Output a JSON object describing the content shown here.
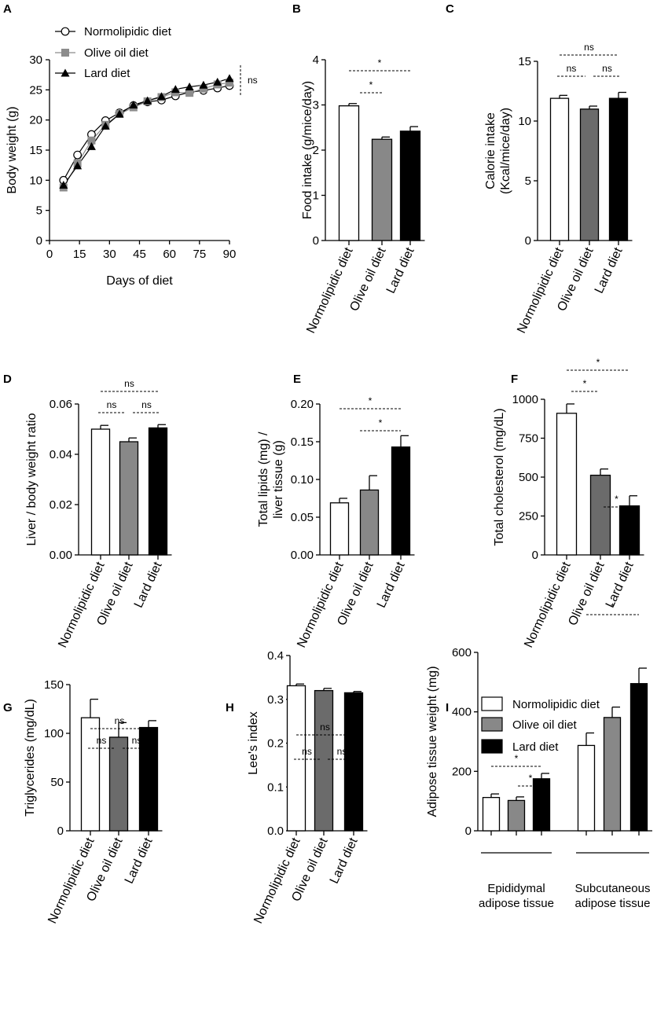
{
  "chart_data": [
    {
      "panel": "A",
      "type": "line",
      "xlabel": "Days of diet",
      "ylabel": "Body weight (g)",
      "xlim": [
        0,
        90
      ],
      "ylim": [
        0,
        30
      ],
      "xticks": [
        "0",
        "15",
        "30",
        "45",
        "60",
        "75",
        "90"
      ],
      "yticks": [
        "0",
        "5",
        "10",
        "15",
        "20",
        "25",
        "30"
      ],
      "x": [
        7,
        14,
        21,
        28,
        35,
        42,
        49,
        56,
        63,
        70,
        77,
        84,
        90
      ],
      "series": [
        {
          "name": "Normolipidic diet",
          "marker": "circle",
          "values": [
            10,
            14.2,
            17.6,
            19.9,
            21.2,
            22.4,
            23.0,
            23.3,
            24.0,
            24.6,
            24.9,
            25.3,
            25.7
          ]
        },
        {
          "name": "Olive oil diet",
          "marker": "square",
          "values": [
            8.8,
            12.8,
            16.6,
            19.2,
            21.0,
            22.1,
            23.1,
            23.8,
            24.6,
            24.5,
            25.2,
            25.9,
            26.2
          ]
        },
        {
          "name": "Lard diet",
          "marker": "triangle",
          "values": [
            9.2,
            12.4,
            15.6,
            19.0,
            21.0,
            22.5,
            23.2,
            23.9,
            25.1,
            25.5,
            25.8,
            26.3,
            26.9
          ]
        }
      ],
      "annotation": "ns"
    },
    {
      "panel": "B",
      "type": "bar",
      "ylabel": "Food intake (g/mice/day)",
      "ylim": [
        0,
        4
      ],
      "yticks": [
        "0",
        "1",
        "2",
        "3",
        "4"
      ],
      "categories": [
        "Normolipidic diet",
        "Olive oil diet",
        "Lard diet"
      ],
      "values": [
        2.98,
        2.24,
        2.42
      ],
      "errors": [
        0.05,
        0.05,
        0.1
      ],
      "fills": [
        "#ffffff",
        "#888888",
        "#000000"
      ],
      "annotations": [
        {
          "from": 1,
          "to": 2,
          "label": "*",
          "level": 2
        },
        {
          "from": 1,
          "to": 3,
          "label": "*",
          "level": 1
        }
      ]
    },
    {
      "panel": "C",
      "type": "bar",
      "ylabel": "Calorie intake\n(Kcal/mice/day)",
      "ylim": [
        0,
        15
      ],
      "yticks": [
        "0",
        "5",
        "10",
        "15"
      ],
      "categories": [
        "Normolipidic diet",
        "Olive oil diet",
        "Lard diet"
      ],
      "values": [
        11.9,
        11.0,
        11.9
      ],
      "errors": [
        0.25,
        0.25,
        0.5
      ],
      "fills": [
        "#ffffff",
        "#6b6b6b",
        "#000000"
      ],
      "annotations": [
        {
          "from": 1,
          "to": 3,
          "label": "ns",
          "level": 1
        },
        {
          "from": 1,
          "to": 2,
          "label": "ns",
          "level": 2
        },
        {
          "from": 2,
          "to": 3,
          "label": "ns",
          "level": 2
        }
      ]
    },
    {
      "panel": "D",
      "type": "bar",
      "ylabel": "Liver / body weight ratio",
      "ylim": [
        0,
        0.06
      ],
      "yticks": [
        "0.00",
        "0.02",
        "0.04",
        "0.06"
      ],
      "categories": [
        "Normolipidic diet",
        "Olive oil diet",
        "Lard diet"
      ],
      "values": [
        0.05,
        0.045,
        0.0505
      ],
      "errors": [
        0.0015,
        0.0015,
        0.0013
      ],
      "fills": [
        "#ffffff",
        "#888888",
        "#000000"
      ],
      "annotations": [
        {
          "from": 1,
          "to": 3,
          "label": "ns",
          "level": 1
        },
        {
          "from": 1,
          "to": 2,
          "label": "ns",
          "level": 2
        },
        {
          "from": 2,
          "to": 3,
          "label": "ns",
          "level": 2
        }
      ]
    },
    {
      "panel": "E",
      "type": "bar",
      "ylabel": "Total lipids (mg) /\nliver tissue (g)",
      "ylim": [
        0,
        0.2
      ],
      "yticks": [
        "0.00",
        "0.05",
        "0.10",
        "0.15",
        "0.20"
      ],
      "categories": [
        "Normolipidic diet",
        "Olive oil diet",
        "Lard diet"
      ],
      "values": [
        0.069,
        0.086,
        0.143
      ],
      "errors": [
        0.006,
        0.019,
        0.015
      ],
      "fills": [
        "#ffffff",
        "#888888",
        "#000000"
      ],
      "annotations": [
        {
          "from": 1,
          "to": 3,
          "label": "*",
          "level": 1
        },
        {
          "from": 2,
          "to": 3,
          "label": "*",
          "level": 2
        }
      ]
    },
    {
      "panel": "F",
      "type": "bar",
      "ylabel": "Total cholesterol (mg/dL)",
      "ylim": [
        0,
        1000
      ],
      "yticks": [
        "0",
        "250",
        "500",
        "750",
        "1000"
      ],
      "categories": [
        "Normolipidic diet",
        "Olive oil diet",
        "Lard diet"
      ],
      "values": [
        910,
        512,
        315
      ],
      "errors": [
        60,
        40,
        65
      ],
      "fills": [
        "#ffffff",
        "#6b6b6b",
        "#000000"
      ],
      "annotations": [
        {
          "from": 1,
          "to": 3,
          "label": "*",
          "level": 1
        },
        {
          "from": 1,
          "to": 2,
          "label": "*",
          "level": 2
        },
        {
          "from": 2,
          "to": 3,
          "label": "*",
          "level": 4
        }
      ]
    },
    {
      "panel": "G",
      "type": "bar",
      "ylabel": "Triglycerides (mg/dL)",
      "ylim": [
        0,
        150
      ],
      "yticks": [
        "0",
        "50",
        "100",
        "150"
      ],
      "categories": [
        "Normolipidic diet",
        "Olive oil diet",
        "Lard diet"
      ],
      "values": [
        116,
        96,
        106
      ],
      "errors": [
        19,
        15,
        7
      ],
      "fills": [
        "#ffffff",
        "#6b6b6b",
        "#000000"
      ],
      "annotations": [
        {
          "from": 1,
          "to": 3,
          "label": "ns",
          "level": 1
        },
        {
          "from": 1,
          "to": 2,
          "label": "ns",
          "level": 2
        },
        {
          "from": 2,
          "to": 3,
          "label": "ns",
          "level": 2
        }
      ]
    },
    {
      "panel": "H",
      "type": "bar",
      "ylabel": "Lee's index",
      "ylim": [
        0,
        0.4
      ],
      "yticks": [
        "0.0",
        "0.1",
        "0.2",
        "0.3",
        "0.4"
      ],
      "categories": [
        "Normolipidic diet",
        "Olive oil diet",
        "Lard diet"
      ],
      "values": [
        0.331,
        0.32,
        0.315
      ],
      "errors": [
        0.004,
        0.005,
        0.003
      ],
      "fills": [
        "#ffffff",
        "#6b6b6b",
        "#000000"
      ],
      "annotations": [
        {
          "from": 1,
          "to": 3,
          "label": "ns",
          "level": 1
        },
        {
          "from": 1,
          "to": 2,
          "label": "ns",
          "level": 2
        },
        {
          "from": 2,
          "to": 3,
          "label": "ns",
          "level": 2
        }
      ]
    },
    {
      "panel": "I",
      "type": "bar",
      "ylabel": "Adipose tissue weight (mg)",
      "ylim": [
        0,
        600
      ],
      "yticks": [
        "0",
        "200",
        "400",
        "600"
      ],
      "legend": [
        "Normolipidic diet",
        "Olive oil diet",
        "Lard diet"
      ],
      "legend_fills": [
        "#ffffff",
        "#888888",
        "#000000"
      ],
      "groups": [
        {
          "label": "Epididymal\nadipose tissue",
          "values": [
            112,
            102,
            175
          ],
          "errors": [
            12,
            12,
            18
          ]
        },
        {
          "label": "Subcutaneous\nadipose tissue",
          "values": [
            287,
            381,
            495
          ],
          "errors": [
            42,
            35,
            52
          ]
        }
      ],
      "annotations": [
        {
          "group": 1,
          "from": 1,
          "to": 3,
          "label": "*",
          "level": 1
        },
        {
          "group": 1,
          "from": 2,
          "to": 3,
          "label": "*",
          "level": 2
        },
        {
          "group": 2,
          "from": 1,
          "to": 3,
          "label": "*",
          "level": 1
        }
      ]
    }
  ]
}
